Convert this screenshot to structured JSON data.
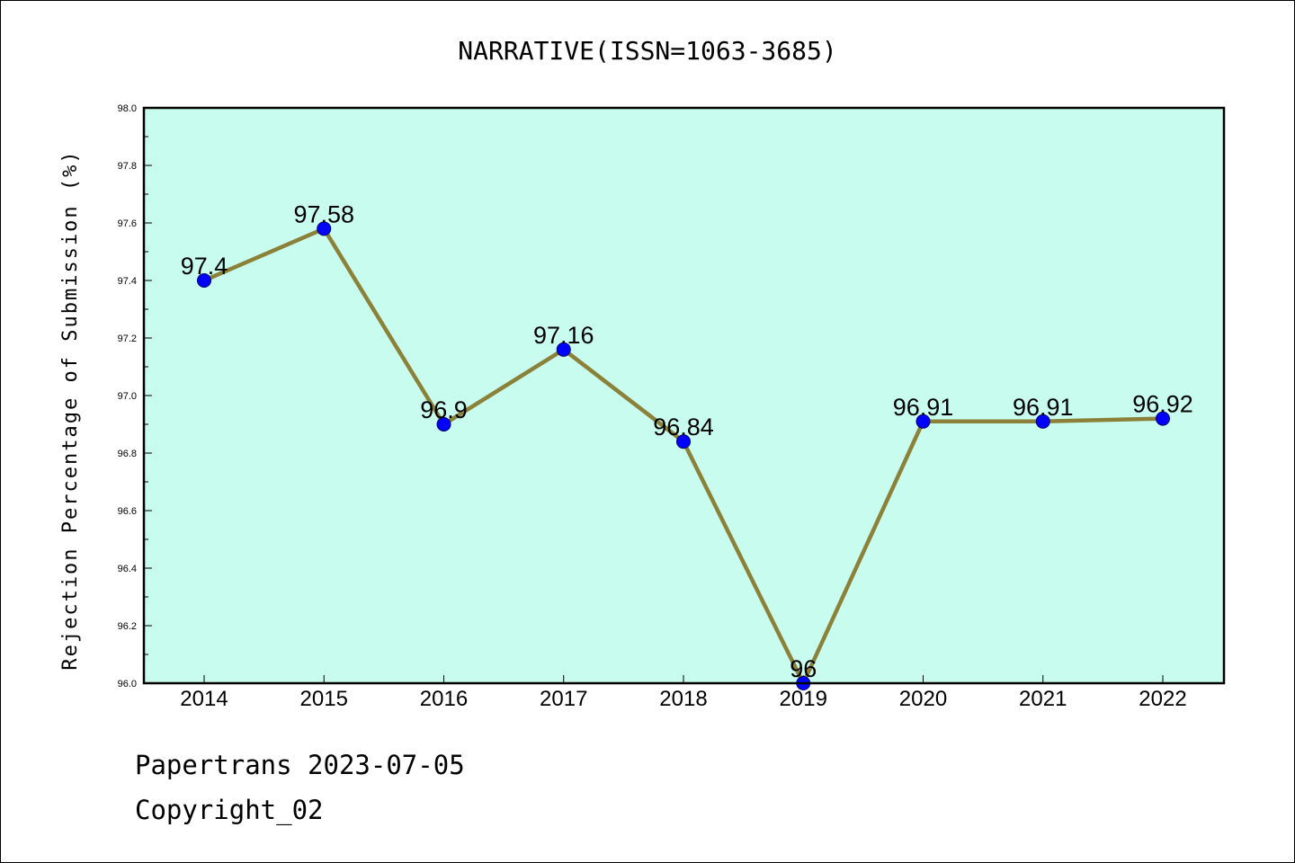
{
  "chart_data": {
    "type": "line",
    "title": "NARRATIVE(ISSN=1063-3685)",
    "ylabel": "Rejection Percentage of Submission (%)",
    "xlabel": "",
    "categories": [
      "2014",
      "2015",
      "2016",
      "2017",
      "2018",
      "2019",
      "2020",
      "2021",
      "2022"
    ],
    "values": [
      97.4,
      97.58,
      96.9,
      97.16,
      96.84,
      96.0,
      96.91,
      96.91,
      96.92
    ],
    "data_labels": [
      "97.4",
      "97.58",
      "96.9",
      "97.16",
      "96.84",
      "96",
      "96.91",
      "96.91",
      "96.92"
    ],
    "ylim": [
      96.0,
      98.0
    ],
    "yticks": [
      "96.0",
      "96.2",
      "96.4",
      "96.6",
      "96.8",
      "97.0",
      "97.2",
      "97.4",
      "97.6",
      "97.8",
      "98.0"
    ],
    "grid": false,
    "colors": {
      "plot_background": "#c8fcee",
      "line": "#8b8139",
      "marker": "#0000ff"
    }
  },
  "footer": {
    "line1": "Papertrans 2023-07-05",
    "line2": "Copyright_02"
  }
}
